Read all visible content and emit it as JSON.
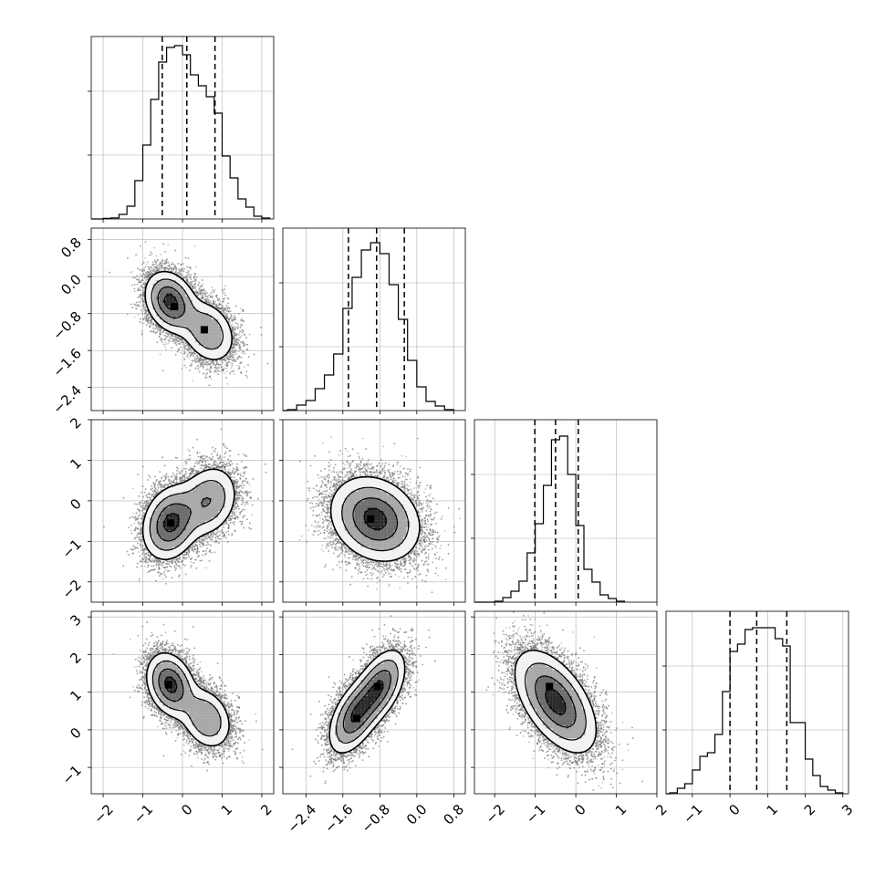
{
  "chart_data": {
    "type": "corner",
    "grid": true,
    "n_params": 4,
    "params": [
      {
        "range": [
          -2.3,
          2.3
        ],
        "ticks": [
          -2,
          -1,
          0,
          1,
          2
        ],
        "tick_labels": [
          "−2",
          "−1",
          "0",
          "1",
          "2"
        ]
      },
      {
        "range": [
          -2.9,
          1.05
        ],
        "ticks": [
          -2.4,
          -1.6,
          -0.8,
          0.0,
          0.8
        ],
        "tick_labels": [
          "−2.4",
          "−1.6",
          "−0.8",
          "0.0",
          "0.8"
        ]
      },
      {
        "range": [
          -2.5,
          2.0
        ],
        "ticks": [
          -2,
          -1,
          0,
          1,
          2
        ],
        "tick_labels": [
          "−2",
          "−1",
          "0",
          "1",
          "2"
        ]
      },
      {
        "range": [
          -1.7,
          3.15
        ],
        "ticks": [
          -1,
          0,
          1,
          2,
          3
        ],
        "tick_labels": [
          "−1",
          "0",
          "1",
          "2",
          "3"
        ]
      }
    ],
    "histograms": [
      {
        "param": 0,
        "quantiles": [
          -0.51,
          0.11,
          0.82
        ],
        "ymax": 1.0,
        "bins": [
          {
            "x": -1.9,
            "v": 0.003
          },
          {
            "x": -1.7,
            "v": 0.006
          },
          {
            "x": -1.5,
            "v": 0.025
          },
          {
            "x": -1.3,
            "v": 0.07
          },
          {
            "x": -1.1,
            "v": 0.21
          },
          {
            "x": -0.9,
            "v": 0.405
          },
          {
            "x": -0.7,
            "v": 0.655
          },
          {
            "x": -0.5,
            "v": 0.86
          },
          {
            "x": -0.3,
            "v": 0.94
          },
          {
            "x": -0.1,
            "v": 0.95
          },
          {
            "x": 0.1,
            "v": 0.9
          },
          {
            "x": 0.3,
            "v": 0.79
          },
          {
            "x": 0.5,
            "v": 0.73
          },
          {
            "x": 0.7,
            "v": 0.67
          },
          {
            "x": 0.9,
            "v": 0.58
          },
          {
            "x": 1.1,
            "v": 0.345
          },
          {
            "x": 1.3,
            "v": 0.225
          },
          {
            "x": 1.5,
            "v": 0.11
          },
          {
            "x": 1.7,
            "v": 0.065
          },
          {
            "x": 1.9,
            "v": 0.015
          },
          {
            "x": 2.1,
            "v": 0.005
          }
        ]
      },
      {
        "param": 1,
        "quantiles": [
          -1.48,
          -0.87,
          -0.27
        ],
        "ymax": 1.0,
        "bins": [
          {
            "x": -2.7,
            "v": 0.005
          },
          {
            "x": -2.5,
            "v": 0.03
          },
          {
            "x": -2.3,
            "v": 0.055
          },
          {
            "x": -2.1,
            "v": 0.12
          },
          {
            "x": -1.9,
            "v": 0.195
          },
          {
            "x": -1.7,
            "v": 0.31
          },
          {
            "x": -1.5,
            "v": 0.56
          },
          {
            "x": -1.3,
            "v": 0.73
          },
          {
            "x": -1.1,
            "v": 0.88
          },
          {
            "x": -0.9,
            "v": 0.92
          },
          {
            "x": -0.7,
            "v": 0.86
          },
          {
            "x": -0.5,
            "v": 0.69
          },
          {
            "x": -0.3,
            "v": 0.5
          },
          {
            "x": -0.1,
            "v": 0.275
          },
          {
            "x": 0.1,
            "v": 0.13
          },
          {
            "x": 0.3,
            "v": 0.05
          },
          {
            "x": 0.5,
            "v": 0.025
          },
          {
            "x": 0.7,
            "v": 0.005
          }
        ]
      },
      {
        "param": 2,
        "quantiles": [
          -1.01,
          -0.5,
          0.06
        ],
        "ymax": 1.0,
        "bins": [
          {
            "x": -1.9,
            "v": 0.005
          },
          {
            "x": -1.7,
            "v": 0.025
          },
          {
            "x": -1.5,
            "v": 0.06
          },
          {
            "x": -1.3,
            "v": 0.115
          },
          {
            "x": -1.1,
            "v": 0.27
          },
          {
            "x": -0.9,
            "v": 0.43
          },
          {
            "x": -0.7,
            "v": 0.64
          },
          {
            "x": -0.5,
            "v": 0.89
          },
          {
            "x": -0.3,
            "v": 0.91
          },
          {
            "x": -0.1,
            "v": 0.7
          },
          {
            "x": 0.1,
            "v": 0.42
          },
          {
            "x": 0.3,
            "v": 0.18
          },
          {
            "x": 0.5,
            "v": 0.11
          },
          {
            "x": 0.7,
            "v": 0.04
          },
          {
            "x": 0.9,
            "v": 0.02
          },
          {
            "x": 1.1,
            "v": 0.005
          }
        ]
      },
      {
        "param": 3,
        "quantiles": [
          0.0,
          0.71,
          1.51
        ],
        "ymax": 1.0,
        "bins": [
          {
            "x": -1.5,
            "v": 0.005
          },
          {
            "x": -1.3,
            "v": 0.03
          },
          {
            "x": -1.1,
            "v": 0.055
          },
          {
            "x": -0.9,
            "v": 0.13
          },
          {
            "x": -0.7,
            "v": 0.205
          },
          {
            "x": -0.5,
            "v": 0.225
          },
          {
            "x": -0.3,
            "v": 0.325
          },
          {
            "x": -0.1,
            "v": 0.56
          },
          {
            "x": 0.1,
            "v": 0.78
          },
          {
            "x": 0.3,
            "v": 0.82
          },
          {
            "x": 0.5,
            "v": 0.9
          },
          {
            "x": 0.7,
            "v": 0.91
          },
          {
            "x": 0.9,
            "v": 0.91
          },
          {
            "x": 1.1,
            "v": 0.91
          },
          {
            "x": 1.3,
            "v": 0.85
          },
          {
            "x": 1.5,
            "v": 0.81
          },
          {
            "x": 1.7,
            "v": 0.39
          },
          {
            "x": 1.9,
            "v": 0.39
          },
          {
            "x": 2.1,
            "v": 0.19
          },
          {
            "x": 2.3,
            "v": 0.1
          },
          {
            "x": 2.5,
            "v": 0.04
          },
          {
            "x": 2.7,
            "v": 0.02
          },
          {
            "x": 2.9,
            "v": 0.005
          }
        ]
      }
    ],
    "pairs": [
      {
        "x_param": 0,
        "y_param": 1,
        "components": [
          {
            "w": 0.6,
            "mx": -0.3,
            "my": -0.55,
            "sx": 0.32,
            "sy": 0.33,
            "rho": -0.25
          },
          {
            "w": 0.4,
            "mx": 0.65,
            "my": -1.2,
            "sx": 0.35,
            "sy": 0.35,
            "rho": -0.25
          }
        ],
        "peaks": [
          {
            "x": -0.2,
            "y": -0.65
          },
          {
            "x": 0.55,
            "y": -1.15
          }
        ]
      },
      {
        "x_param": 0,
        "y_param": 2,
        "components": [
          {
            "w": 0.6,
            "mx": -0.3,
            "my": -0.55,
            "sx": 0.35,
            "sy": 0.45,
            "rho": 0.2
          },
          {
            "w": 0.4,
            "mx": 0.65,
            "my": 0.0,
            "sx": 0.38,
            "sy": 0.45,
            "rho": 0.2
          }
        ],
        "peaks": [
          {
            "x": -0.3,
            "y": -0.55
          }
        ]
      },
      {
        "x_param": 1,
        "y_param": 2,
        "components": [
          {
            "w": 1.0,
            "mx": -0.9,
            "my": -0.45,
            "sx": 0.48,
            "sy": 0.52,
            "rho": -0.2
          }
        ],
        "peaks": [
          {
            "x": -1.0,
            "y": -0.45
          }
        ]
      },
      {
        "x_param": 0,
        "y_param": 3,
        "components": [
          {
            "w": 0.6,
            "mx": -0.3,
            "my": 1.2,
            "sx": 0.3,
            "sy": 0.42,
            "rho": -0.25
          },
          {
            "w": 0.4,
            "mx": 0.6,
            "my": 0.3,
            "sx": 0.33,
            "sy": 0.42,
            "rho": -0.25
          }
        ],
        "peaks": [
          {
            "x": -0.35,
            "y": 1.2
          }
        ]
      },
      {
        "x_param": 1,
        "y_param": 3,
        "components": [
          {
            "w": 0.5,
            "mx": -1.35,
            "my": 0.35,
            "sx": 0.28,
            "sy": 0.5,
            "rho": 0.5
          },
          {
            "w": 0.5,
            "mx": -0.8,
            "my": 1.15,
            "sx": 0.28,
            "sy": 0.5,
            "rho": 0.5
          }
        ],
        "peaks": [
          {
            "x": -0.85,
            "y": 1.15
          },
          {
            "x": -1.3,
            "y": 0.3
          }
        ]
      },
      {
        "x_param": 2,
        "y_param": 3,
        "components": [
          {
            "w": 1.0,
            "mx": -0.5,
            "my": 0.75,
            "sx": 0.5,
            "sy": 0.68,
            "rho": -0.55
          }
        ],
        "peaks": [
          {
            "x": -0.65,
            "y": 1.15
          }
        ]
      }
    ],
    "contour_levels": [
      "0.5 sigma",
      "1 sigma",
      "1.5 sigma",
      "2 sigma"
    ]
  }
}
